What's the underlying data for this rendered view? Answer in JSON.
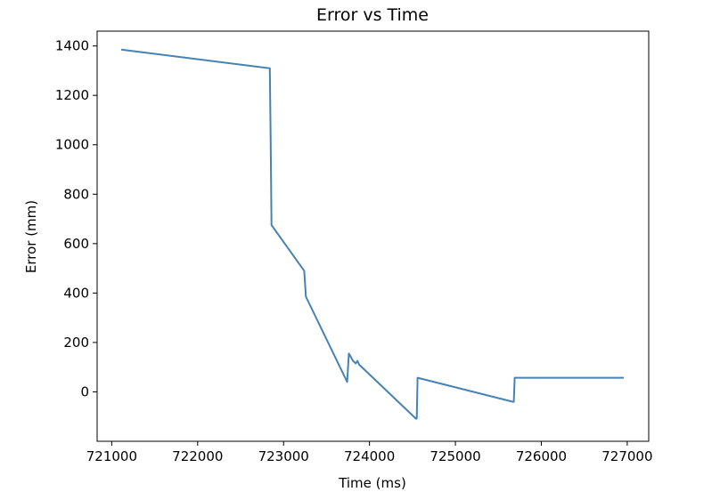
{
  "chart_data": {
    "type": "line",
    "title": "Error vs Time",
    "xlabel": "Time (ms)",
    "ylabel": "Error (mm)",
    "xlim": [
      720830,
      727250
    ],
    "ylim": [
      -200,
      1460
    ],
    "xticks": [
      721000,
      722000,
      723000,
      724000,
      725000,
      726000,
      727000
    ],
    "yticks": [
      0,
      200,
      400,
      600,
      800,
      1000,
      1200,
      1400
    ],
    "grid": false,
    "series": [
      {
        "color": "#4682b4",
        "x": [
          721110,
          722840,
          722850,
          722860,
          723240,
          723260,
          723740,
          723760,
          723810,
          723840,
          723860,
          723880,
          724540,
          724550,
          724560,
          725670,
          725680,
          725690,
          726960
        ],
        "y": [
          1385,
          1310,
          1000,
          675,
          490,
          385,
          40,
          155,
          125,
          115,
          125,
          110,
          -108,
          -108,
          57,
          -40,
          -40,
          57,
          57
        ]
      }
    ]
  }
}
